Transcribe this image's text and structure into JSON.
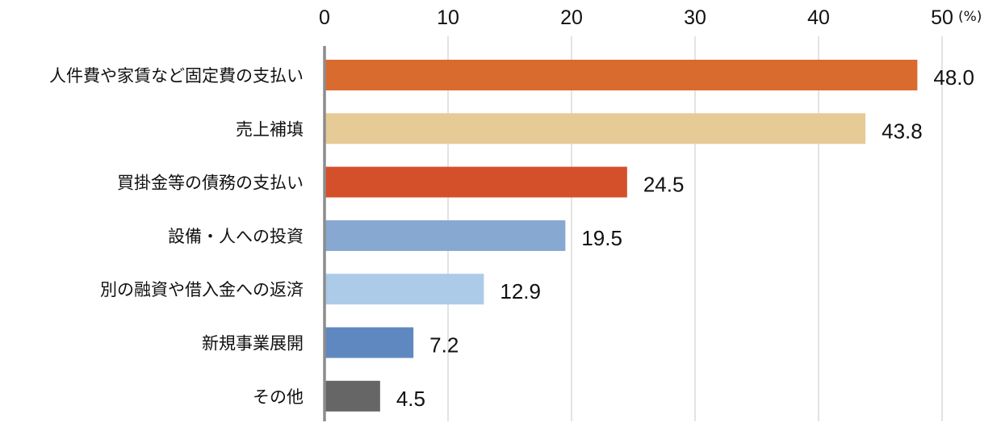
{
  "chart_data": {
    "type": "bar",
    "orientation": "horizontal",
    "categories": [
      "人件費や家賃など固定費の支払い",
      "売上補填",
      "買掛金等の債務の支払い",
      "設備・人への投資",
      "別の融資や借入金への返済",
      "新規事業展開",
      "その他"
    ],
    "values": [
      48.0,
      43.8,
      24.5,
      19.5,
      12.9,
      7.2,
      4.5
    ],
    "value_labels": [
      "48.0",
      "43.8",
      "24.5",
      "19.5",
      "12.9",
      "7.2",
      "4.5"
    ],
    "colors": [
      "#D96B2E",
      "#E6CB96",
      "#D4502B",
      "#87A8D0",
      "#ABCBE8",
      "#6088C0",
      "#666666"
    ],
    "x_ticks": [
      "0",
      "10",
      "20",
      "30",
      "40",
      "50"
    ],
    "x_unit": "(%)",
    "xlim": [
      0,
      50
    ],
    "grid": true,
    "legend": "none"
  }
}
